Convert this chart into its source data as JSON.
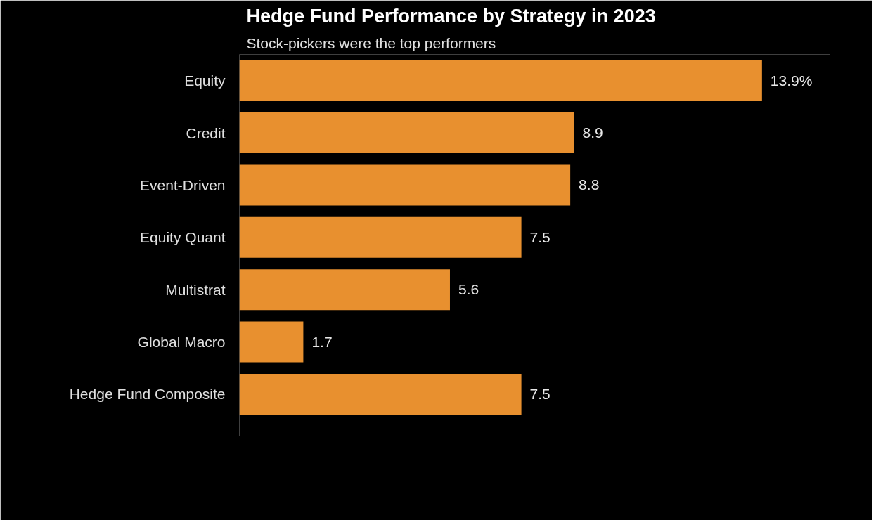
{
  "chart_data": {
    "type": "bar",
    "orientation": "horizontal",
    "title": "Hedge Fund Performance by Strategy in 2023",
    "subtitle": "Stock-pickers were the top performers",
    "categories": [
      "Equity",
      "Credit",
      "Event-Driven",
      "Equity Quant",
      "Multistrat",
      "Global Macro",
      "Hedge Fund Composite"
    ],
    "values": [
      13.9,
      8.9,
      8.8,
      7.5,
      5.6,
      1.7,
      7.5
    ],
    "value_labels": [
      "13.9%",
      "8.9",
      "8.8",
      "7.5",
      "5.6",
      "1.7",
      "7.5"
    ],
    "color": "#e8902f",
    "grid": false
  }
}
